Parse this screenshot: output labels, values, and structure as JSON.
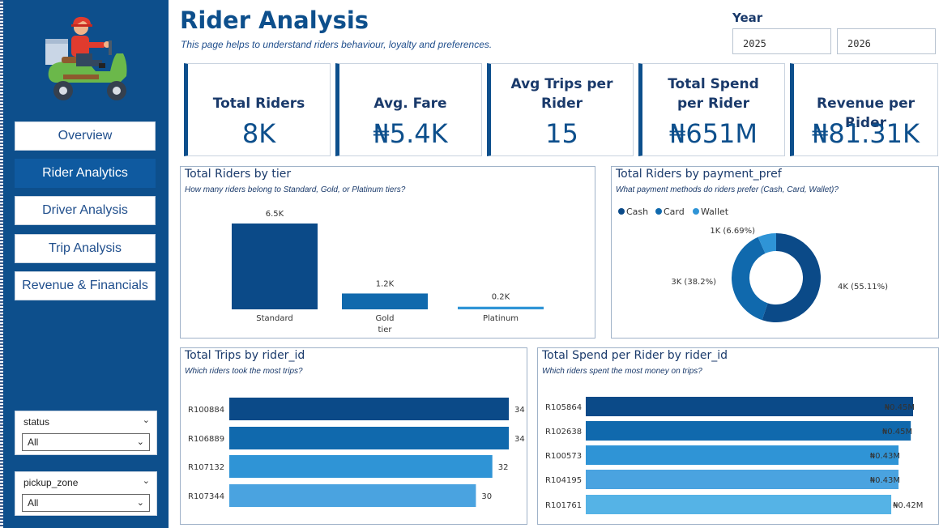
{
  "page": {
    "title": "Rider Analysis",
    "subtitle": "This page helps to understand riders behaviour, loyalty and preferences."
  },
  "nav": {
    "items": [
      {
        "label": "Overview",
        "active": false
      },
      {
        "label": "Rider Analytics",
        "active": true
      },
      {
        "label": "Driver Analysis",
        "active": false
      },
      {
        "label": "Trip Analysis",
        "active": false
      },
      {
        "label": "Revenue & Financials",
        "active": false
      }
    ]
  },
  "filters": {
    "status": {
      "title": "status",
      "value": "All"
    },
    "pickup_zone": {
      "title": "pickup_zone",
      "value": "All"
    }
  },
  "year": {
    "label": "Year",
    "options": [
      "2025",
      "2026"
    ]
  },
  "kpis": [
    {
      "label": "Total Riders",
      "value": "8K"
    },
    {
      "label": "Avg. Fare",
      "value": "₦5.4K"
    },
    {
      "label": "Avg Trips per Rider",
      "value": "15"
    },
    {
      "label": "Total Spend per Rider",
      "value": "₦651M"
    },
    {
      "label": "Revenue per Rider",
      "value": "₦81.31K"
    }
  ],
  "panels": {
    "tier": {
      "title": "Total Riders by tier",
      "subtitle": "How many riders belong to Standard, Gold, or Platinum tiers?"
    },
    "payment": {
      "title": "Total Riders by payment_pref",
      "subtitle": "What payment methods do riders prefer (Cash, Card, Wallet)?"
    },
    "trips": {
      "title": "Total Trips by rider_id",
      "subtitle": "Which riders took the most trips?"
    },
    "spend": {
      "title": "Total Spend per Rider by rider_id",
      "subtitle": "Which riders spent the most money on trips?"
    }
  },
  "colors": {
    "brand": "#0d4f8c",
    "bar_dark": "#0b4a88",
    "bar_mid": "#1069ad",
    "bar_light": "#2f94d6",
    "bar_lighter": "#4aa3e0",
    "bar_lightest": "#55b3e6"
  },
  "chart_data": [
    {
      "type": "bar",
      "title": "Total Riders by tier",
      "xlabel": "tier",
      "categories": [
        "Standard",
        "Gold",
        "Platinum"
      ],
      "values": [
        6500,
        1200,
        200
      ],
      "labels": [
        "6.5K",
        "1.2K",
        "0.2K"
      ]
    },
    {
      "type": "pie",
      "title": "Total Riders by payment_pref",
      "legend": [
        "Cash",
        "Card",
        "Wallet"
      ],
      "categories": [
        "Cash",
        "Card",
        "Wallet"
      ],
      "values": [
        55.11,
        38.2,
        6.69
      ],
      "labels": [
        "4K (55.11%)",
        "3K (38.2%)",
        "1K (6.69%)"
      ]
    },
    {
      "type": "bar",
      "orientation": "horizontal",
      "title": "Total Trips by rider_id",
      "categories": [
        "R100884",
        "R106889",
        "R107132",
        "R107344"
      ],
      "values": [
        34,
        34,
        32,
        30
      ],
      "labels": [
        "34",
        "34",
        "32",
        "30"
      ]
    },
    {
      "type": "bar",
      "orientation": "horizontal",
      "title": "Total Spend per Rider by rider_id",
      "categories": [
        "R105864",
        "R102638",
        "R100573",
        "R104195",
        "R101761"
      ],
      "values": [
        0.45,
        0.45,
        0.43,
        0.43,
        0.42
      ],
      "labels": [
        "₦0.45M",
        "₦0.45M",
        "₦0.43M",
        "₦0.43M",
        "₦0.42M"
      ]
    }
  ]
}
